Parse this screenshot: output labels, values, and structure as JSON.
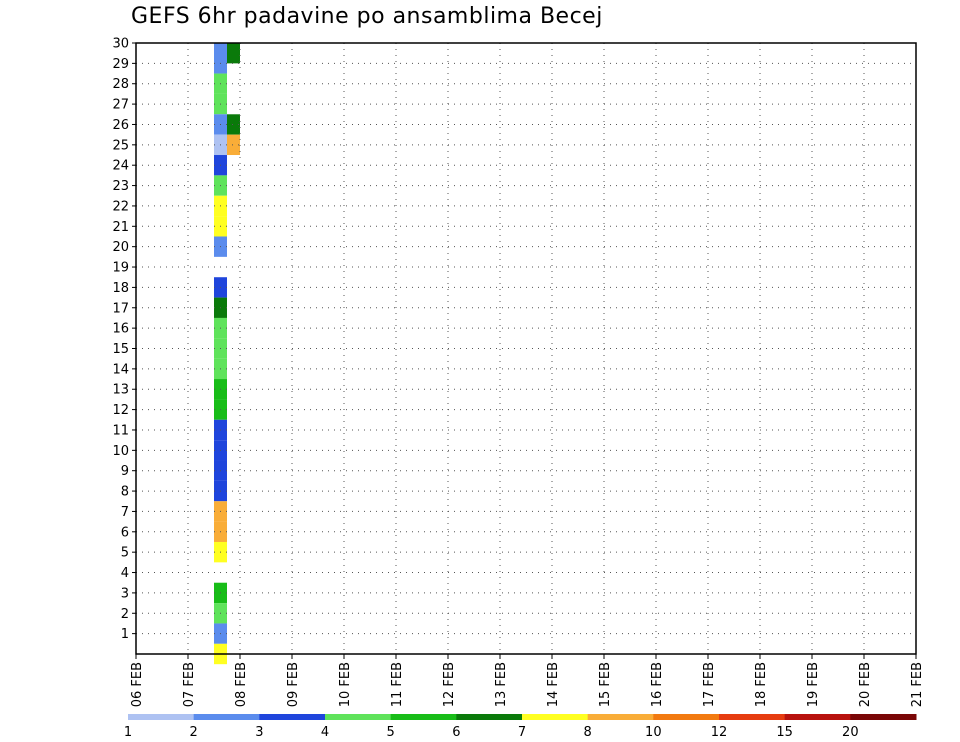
{
  "chart_data": {
    "type": "heatmap",
    "title": "GEFS 6hr padavine po ansamblima Becej",
    "x_labels": [
      "06 FEB",
      "07 FEB",
      "08 FEB",
      "09 FEB",
      "10 FEB",
      "11 FEB",
      "12 FEB",
      "13 FEB",
      "14 FEB",
      "15 FEB",
      "16 FEB",
      "17 FEB",
      "18 FEB",
      "19 FEB",
      "20 FEB",
      "21 FEB"
    ],
    "y_labels": [
      "1",
      "2",
      "3",
      "4",
      "5",
      "6",
      "7",
      "8",
      "9",
      "10",
      "11",
      "12",
      "13",
      "14",
      "15",
      "16",
      "17",
      "18",
      "19",
      "20",
      "21",
      "22",
      "23",
      "24",
      "25",
      "26",
      "27",
      "28",
      "29",
      "30"
    ],
    "ylim": [
      0,
      30
    ],
    "grid": true,
    "colorbar": {
      "labels": [
        "1",
        "2",
        "3",
        "4",
        "5",
        "6",
        "7",
        "8",
        "10",
        "12",
        "15",
        "20"
      ],
      "colors": [
        "#aec2f2",
        "#5b8ced",
        "#1f45dc",
        "#5fe35b",
        "#18bd18",
        "#0a7a0a",
        "#ffff22",
        "#f9ad38",
        "#f27a10",
        "#e63c10",
        "#b8120e",
        "#7a0606"
      ]
    },
    "cells": [
      {
        "x": "07 FEB",
        "ens": 30,
        "c": "#5b8ced"
      },
      {
        "x": "07 FEB",
        "ens": 30,
        "c": "#0a7a0a"
      },
      {
        "x": "07 FEB",
        "ens": 29,
        "c": "#5b8ced"
      },
      {
        "x": "07 FEB",
        "ens": 28,
        "c": "#5fe35b"
      },
      {
        "x": "07 FEB",
        "ens": 27,
        "c": "#5fe35b"
      },
      {
        "x": "07 FEB",
        "ens": 26,
        "c": "#5b8ced"
      },
      {
        "x": "07 FEB",
        "ens": 26,
        "c": "#0a7a0a"
      },
      {
        "x": "07 FEB",
        "ens": 25,
        "c": "#aec2f2"
      },
      {
        "x": "07 FEB",
        "ens": 25,
        "c": "#f9ad38"
      },
      {
        "x": "07 FEB",
        "ens": 24,
        "c": "#1f45dc"
      },
      {
        "x": "07 FEB",
        "ens": 23,
        "c": "#5fe35b"
      },
      {
        "x": "07 FEB",
        "ens": 22,
        "c": "#ffff22"
      },
      {
        "x": "07 FEB",
        "ens": 21,
        "c": "#ffff22"
      },
      {
        "x": "07 FEB",
        "ens": 20,
        "c": "#5b8ced"
      },
      {
        "x": "07 FEB",
        "ens": 18,
        "c": "#1f45dc"
      },
      {
        "x": "07 FEB",
        "ens": 17,
        "c": "#0a7a0a"
      },
      {
        "x": "07 FEB",
        "ens": 16,
        "c": "#5fe35b"
      },
      {
        "x": "07 FEB",
        "ens": 15,
        "c": "#5fe35b"
      },
      {
        "x": "07 FEB",
        "ens": 14,
        "c": "#5fe35b"
      },
      {
        "x": "07 FEB",
        "ens": 13,
        "c": "#18bd18"
      },
      {
        "x": "07 FEB",
        "ens": 12,
        "c": "#18bd18"
      },
      {
        "x": "07 FEB",
        "ens": 11,
        "c": "#1f45dc"
      },
      {
        "x": "07 FEB",
        "ens": 10,
        "c": "#1f45dc"
      },
      {
        "x": "07 FEB",
        "ens": 9,
        "c": "#1f45dc"
      },
      {
        "x": "07 FEB",
        "ens": 8,
        "c": "#1f45dc"
      },
      {
        "x": "07 FEB",
        "ens": 7,
        "c": "#f9ad38"
      },
      {
        "x": "07 FEB",
        "ens": 6,
        "c": "#f9ad38"
      },
      {
        "x": "07 FEB",
        "ens": 5,
        "c": "#ffff22"
      },
      {
        "x": "07 FEB",
        "ens": 3,
        "c": "#18bd18"
      },
      {
        "x": "07 FEB",
        "ens": 2,
        "c": "#5fe35b"
      },
      {
        "x": "07 FEB",
        "ens": 1,
        "c": "#5b8ced"
      },
      {
        "x": "07 FEB",
        "ens": 0,
        "c": "#ffff22"
      }
    ]
  }
}
